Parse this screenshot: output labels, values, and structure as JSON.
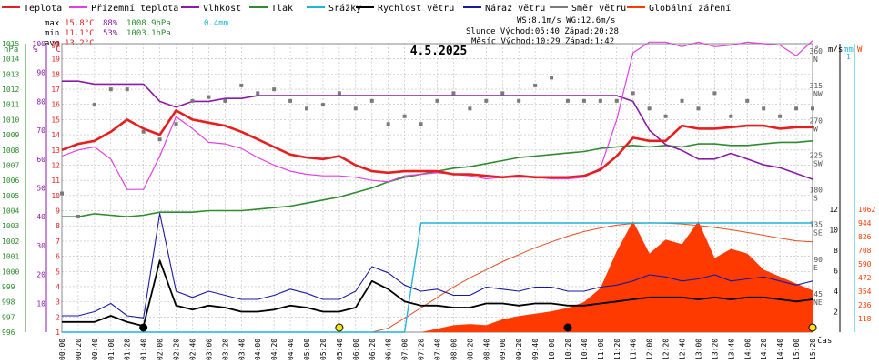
{
  "legend": [
    {
      "label": "Teplota",
      "color": "#e61e1e"
    },
    {
      "label": "Přízemní teplota",
      "color": "#e040e0"
    },
    {
      "label": "Vlhkost",
      "color": "#8a1aa8"
    },
    {
      "label": "Tlak",
      "color": "#2e8b2e"
    },
    {
      "label": "Srážky",
      "color": "#1eb4dc"
    },
    {
      "label": "Rychlost větru",
      "color": "#000000"
    },
    {
      "label": "Náraz větru",
      "color": "#1a1aa0"
    },
    {
      "label": "Směr větru",
      "color": "#7a7a7a"
    },
    {
      "label": "Globální záření",
      "color": "#ff3a00"
    }
  ],
  "stats": {
    "rows": [
      {
        "label": "max",
        "temp": "15.8°C",
        "hum": "88%",
        "press": "1008.9hPa",
        "rain": "0.4mm"
      },
      {
        "label": "min",
        "temp": "11.1°C",
        "hum": "53%",
        "press": "1003.1hPa",
        "rain": ""
      },
      {
        "label": "avg",
        "temp": "13.2°C",
        "hum": "",
        "press": "",
        "rain": ""
      }
    ],
    "wind_line": "WS:8.1m/s     WG:12.6m/s",
    "sun_line": "Slunce  Východ:05:40  Západ:20:28",
    "moon_line": "Měsíc  Východ:10:29  Západ:1:42"
  },
  "date": "4.5.2025",
  "units": {
    "hpa": "hPa",
    "pct": "%",
    "degc": "°C",
    "deg": "°",
    "ms": "m/s",
    "mm": "mm",
    "wm2": "W",
    "time": "čas"
  },
  "chart_data": {
    "type": "line",
    "x": [
      "00:00",
      "00:20",
      "00:40",
      "01:00",
      "01:20",
      "01:40",
      "02:00",
      "02:20",
      "02:40",
      "03:00",
      "03:20",
      "03:40",
      "04:00",
      "04:20",
      "04:40",
      "05:00",
      "05:20",
      "05:40",
      "06:00",
      "06:20",
      "06:40",
      "07:00",
      "07:20",
      "07:40",
      "08:00",
      "08:20",
      "08:40",
      "09:00",
      "09:20",
      "09:40",
      "10:00",
      "10:20",
      "10:40",
      "11:00",
      "11:20",
      "11:40",
      "12:00",
      "12:20",
      "12:40",
      "13:00",
      "13:20",
      "13:40",
      "14:00",
      "14:20",
      "14:40",
      "15:00",
      "15:20"
    ],
    "axes": {
      "pressure": {
        "label": "hPa",
        "ticks": [
          "996",
          "997",
          "998",
          "999",
          "1000",
          "1001",
          "1002",
          "1003",
          "1004",
          "1005",
          "1006",
          "1007",
          "1008",
          "1009",
          "1010",
          "1011",
          "1012",
          "1013",
          "1014",
          "1015"
        ]
      },
      "humidity": {
        "label": "%",
        "ticks": [
          "10",
          "20",
          "30",
          "40",
          "50",
          "60",
          "70",
          "80",
          "90",
          "100"
        ]
      },
      "temperature": {
        "label": "°C",
        "ticks": [
          "1",
          "2",
          "3",
          "4",
          "5",
          "6",
          "7",
          "8",
          "9",
          "10",
          "11",
          "12",
          "13",
          "14",
          "15",
          "16",
          "17",
          "18",
          "19",
          "20"
        ]
      },
      "direction": {
        "label": "°",
        "ticks": [
          "45 NE",
          "90 E",
          "135 SE",
          "180 S",
          "225 SW",
          "270 W",
          "315 NW",
          "360 N"
        ]
      },
      "wind": {
        "label": "m/s",
        "ticks": [
          "2",
          "4",
          "6",
          "8",
          "10",
          "12"
        ]
      },
      "rain": {
        "label": "mm",
        "ticks": [
          "1"
        ]
      },
      "radiation": {
        "label": "W",
        "ticks": [
          "118",
          "236",
          "354",
          "472",
          "590",
          "708",
          "826",
          "944",
          "1062"
        ]
      }
    },
    "series": [
      {
        "name": "Teplota",
        "unit": "°C",
        "values": [
          13.0,
          13.4,
          13.6,
          14.2,
          15.0,
          14.4,
          14.0,
          15.6,
          15.0,
          14.8,
          14.6,
          14.2,
          13.7,
          13.2,
          12.7,
          12.5,
          12.4,
          12.6,
          12.0,
          11.6,
          11.5,
          11.6,
          11.6,
          11.6,
          11.4,
          11.4,
          11.3,
          11.2,
          11.3,
          11.2,
          11.2,
          11.2,
          11.3,
          11.7,
          12.6,
          13.8,
          13.6,
          13.6,
          14.6,
          14.4,
          14.4,
          14.5,
          14.6,
          14.6,
          14.4,
          14.5,
          14.5
        ]
      },
      {
        "name": "Přízemní teplota",
        "unit": "°C",
        "values": [
          12.6,
          13.0,
          13.2,
          12.4,
          10.4,
          10.4,
          12.6,
          15.2,
          14.4,
          13.5,
          13.4,
          13.1,
          12.5,
          12.0,
          11.6,
          11.4,
          11.3,
          11.3,
          11.2,
          11.0,
          10.9,
          11.3,
          11.4,
          11.5,
          11.4,
          11.3,
          11.1,
          11.2,
          11.2,
          11.2,
          11.1,
          11.1,
          11.2,
          11.8,
          15.0,
          19.4,
          20.1,
          20.1,
          19.8,
          20.1,
          19.8,
          19.9,
          20.1,
          20.0,
          19.9,
          19.2,
          20.2
        ]
      },
      {
        "name": "Vlhkost",
        "unit": "%",
        "values": [
          87,
          87,
          86,
          86,
          86,
          86,
          80,
          78,
          80,
          80,
          81,
          81,
          82,
          82,
          82,
          82,
          82,
          82,
          82,
          82,
          82,
          82,
          82,
          82,
          82,
          82,
          82,
          82,
          82,
          82,
          82,
          82,
          82,
          82,
          82,
          80,
          70,
          65,
          63,
          60,
          60,
          62,
          60,
          58,
          57,
          55,
          53
        ]
      },
      {
        "name": "Tlak",
        "unit": "hPa",
        "values": [
          1003.6,
          1003.6,
          1003.8,
          1003.7,
          1003.6,
          1003.7,
          1003.9,
          1003.9,
          1003.9,
          1004.0,
          1004.0,
          1004.0,
          1004.1,
          1004.2,
          1004.3,
          1004.5,
          1004.7,
          1004.9,
          1005.2,
          1005.5,
          1005.9,
          1006.2,
          1006.4,
          1006.6,
          1006.8,
          1006.9,
          1007.1,
          1007.3,
          1007.5,
          1007.6,
          1007.7,
          1007.8,
          1007.9,
          1008.1,
          1008.2,
          1008.3,
          1008.2,
          1008.3,
          1008.2,
          1008.4,
          1008.4,
          1008.3,
          1008.3,
          1008.4,
          1008.5,
          1008.5,
          1008.6
        ]
      },
      {
        "name": "Srážky",
        "unit": "mm",
        "values": [
          0,
          0,
          0,
          0,
          0,
          0,
          0,
          0,
          0,
          0,
          0,
          0,
          0,
          0,
          0,
          0,
          0,
          0,
          0,
          0,
          0,
          0,
          0.4,
          0.4,
          0.4,
          0.4,
          0.4,
          0.4,
          0.4,
          0.4,
          0.4,
          0.4,
          0.4,
          0.4,
          0.4,
          0.4,
          0.4,
          0.4,
          0.4,
          0.4,
          0.4,
          0.4,
          0.4,
          0.4,
          0.4,
          0.4,
          0.4
        ]
      },
      {
        "name": "Rychlost větru",
        "unit": "m/s",
        "values": [
          1.0,
          1.0,
          1.0,
          1.6,
          1.0,
          0.6,
          7.0,
          2.6,
          2.2,
          2.6,
          2.4,
          2.0,
          2.0,
          2.2,
          2.6,
          2.4,
          2.0,
          2.0,
          2.4,
          5.0,
          4.2,
          3.0,
          2.6,
          2.6,
          2.4,
          2.4,
          2.8,
          2.8,
          2.6,
          2.8,
          2.8,
          2.6,
          2.6,
          2.8,
          3.0,
          3.2,
          3.4,
          3.4,
          3.4,
          3.2,
          3.4,
          3.2,
          3.4,
          3.4,
          3.2,
          3.0,
          3.2
        ]
      },
      {
        "name": "Náraz větru",
        "unit": "m/s",
        "values": [
          1.6,
          1.6,
          2.0,
          2.8,
          1.6,
          1.4,
          11.6,
          4.0,
          3.4,
          4.0,
          3.6,
          3.2,
          3.2,
          3.6,
          4.2,
          3.8,
          3.2,
          3.2,
          4.0,
          6.4,
          5.8,
          4.6,
          4.0,
          4.2,
          3.6,
          3.6,
          4.4,
          4.2,
          4.0,
          4.4,
          4.4,
          4.0,
          4.0,
          4.4,
          4.6,
          5.0,
          5.6,
          5.4,
          5.0,
          5.2,
          5.6,
          5.0,
          5.2,
          5.4,
          5.0,
          4.6,
          5.0
        ]
      },
      {
        "name": "Globální záření",
        "unit": "W",
        "values": [
          0,
          0,
          0,
          0,
          0,
          0,
          0,
          0,
          0,
          0,
          0,
          0,
          0,
          0,
          0,
          0,
          0,
          0,
          0,
          0,
          0,
          0,
          0,
          30,
          60,
          70,
          60,
          110,
          140,
          160,
          180,
          210,
          260,
          380,
          700,
          960,
          680,
          800,
          760,
          960,
          640,
          720,
          680,
          540,
          480,
          420,
          360
        ]
      },
      {
        "name": "Globální záření",
        "unit": "W",
        "values": [
          0,
          0,
          0,
          0,
          0,
          0,
          0,
          0,
          0,
          0,
          0,
          0,
          0,
          0,
          0,
          0,
          0,
          0,
          0,
          0,
          35,
          120,
          210,
          300,
          390,
          470,
          540,
          610,
          670,
          730,
          780,
          830,
          870,
          900,
          925,
          940,
          945,
          942,
          935,
          922,
          905,
          885,
          862,
          838,
          812,
          790,
          780
        ]
      },
      {
        "name": "Směr větru",
        "unit": "°",
        "values": [
          180,
          150,
          295,
          315,
          315,
          260,
          250,
          270,
          300,
          305,
          300,
          320,
          310,
          315,
          300,
          290,
          295,
          310,
          290,
          300,
          270,
          280,
          270,
          300,
          310,
          290,
          300,
          310,
          300,
          320,
          330,
          300,
          300,
          300,
          300,
          310,
          290,
          280,
          300,
          290,
          310,
          280,
          300,
          290,
          280,
          290,
          290
        ]
      }
    ],
    "sun_markers": [
      "01:40",
      "05:40",
      "10:20",
      "15:20"
    ],
    "grid": true
  }
}
